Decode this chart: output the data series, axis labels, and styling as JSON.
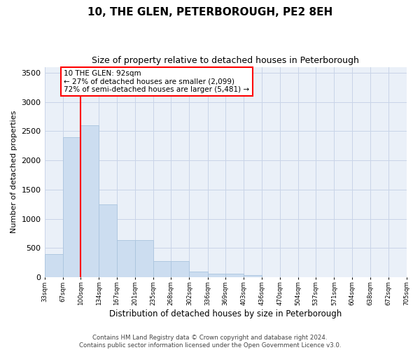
{
  "title": "10, THE GLEN, PETERBOROUGH, PE2 8EH",
  "subtitle": "Size of property relative to detached houses in Peterborough",
  "xlabel": "Distribution of detached houses by size in Peterborough",
  "ylabel": "Number of detached properties",
  "bar_color": "#ccddf0",
  "bar_edge_color": "#aac4de",
  "grid_color": "#c8d4e8",
  "bg_color": "#eaf0f8",
  "property_line_x": 1,
  "property_line_color": "red",
  "annotation_text": "10 THE GLEN: 92sqm\n← 27% of detached houses are smaller (2,099)\n72% of semi-detached houses are larger (5,481) →",
  "annotation_box_color": "white",
  "annotation_box_edge": "red",
  "footer": "Contains HM Land Registry data © Crown copyright and database right 2024.\nContains public sector information licensed under the Open Government Licence v3.0.",
  "bin_edges": [
    33,
    67,
    100,
    134,
    167,
    201,
    235,
    268,
    302,
    336,
    369,
    403,
    436,
    470,
    504,
    537,
    571,
    604,
    638,
    672,
    705
  ],
  "values": [
    390,
    2400,
    2600,
    1250,
    630,
    630,
    280,
    280,
    100,
    65,
    55,
    40,
    0,
    0,
    0,
    0,
    0,
    0,
    0,
    0
  ],
  "ylim": [
    0,
    3600
  ],
  "yticks": [
    0,
    500,
    1000,
    1500,
    2000,
    2500,
    3000,
    3500
  ]
}
